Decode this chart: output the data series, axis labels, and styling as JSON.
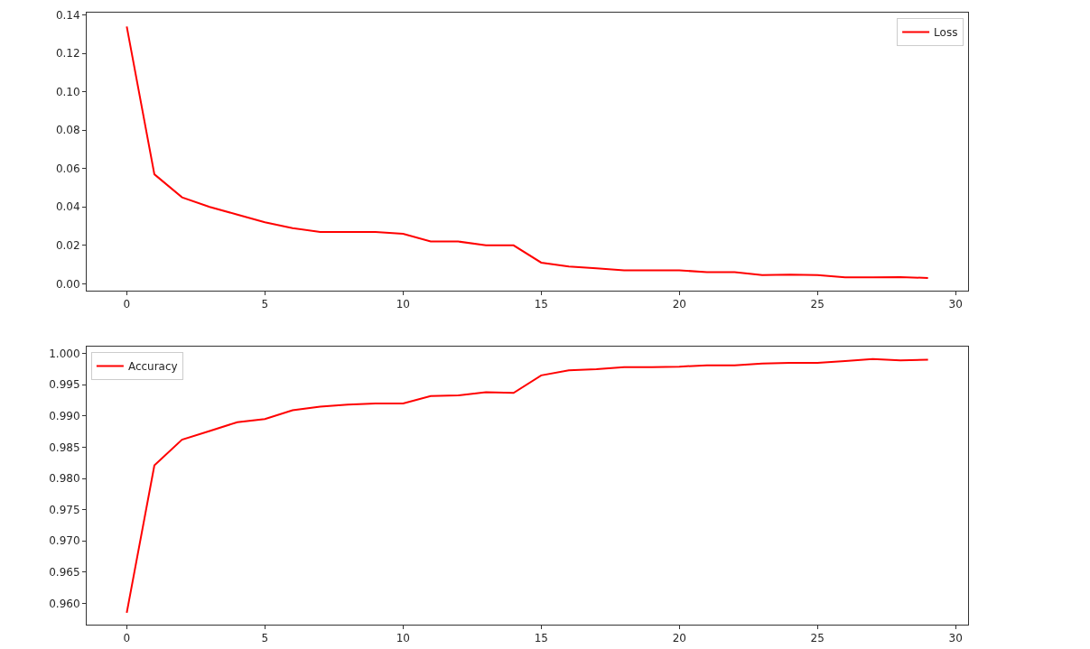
{
  "chart_data": [
    {
      "type": "line",
      "x": [
        0,
        1,
        2,
        3,
        4,
        5,
        6,
        7,
        8,
        9,
        10,
        11,
        12,
        13,
        14,
        15,
        16,
        17,
        18,
        19,
        20,
        21,
        22,
        23,
        24,
        25,
        26,
        27,
        28,
        29
      ],
      "series": [
        {
          "name": "Loss",
          "color": "#ff0000",
          "values": [
            0.134,
            0.057,
            0.045,
            0.04,
            0.036,
            0.032,
            0.029,
            0.027,
            0.027,
            0.027,
            0.026,
            0.022,
            0.022,
            0.02,
            0.02,
            0.011,
            0.009,
            0.008,
            0.007,
            0.007,
            0.007,
            0.006,
            0.006,
            0.0045,
            0.0047,
            0.0045,
            0.0033,
            0.0033,
            0.0035,
            0.003
          ]
        }
      ],
      "xlim": [
        -1.45,
        30.45
      ],
      "xticks": [
        0,
        5,
        10,
        15,
        20,
        25,
        30
      ],
      "ylim": [
        -0.0036,
        0.1412
      ],
      "yticks": [
        {
          "value": 0,
          "label": "0.00"
        },
        {
          "value": 0.02,
          "label": "0.02"
        },
        {
          "value": 0.04,
          "label": "0.04"
        },
        {
          "value": 0.06,
          "label": "0.06"
        },
        {
          "value": 0.08,
          "label": "0.08"
        },
        {
          "value": 0.1,
          "label": "0.10"
        },
        {
          "value": 0.12,
          "label": "0.12"
        },
        {
          "value": 0.14,
          "label": "0.14"
        }
      ],
      "legend": "top right"
    },
    {
      "type": "line",
      "x": [
        0,
        1,
        2,
        3,
        4,
        5,
        6,
        7,
        8,
        9,
        10,
        11,
        12,
        13,
        14,
        15,
        16,
        17,
        18,
        19,
        20,
        21,
        22,
        23,
        24,
        25,
        26,
        27,
        28,
        29
      ],
      "series": [
        {
          "name": "Accuracy",
          "color": "#ff0000",
          "values": [
            0.9585,
            0.9821,
            0.9862,
            0.9876,
            0.989,
            0.9895,
            0.9909,
            0.9915,
            0.9918,
            0.992,
            0.992,
            0.9932,
            0.9933,
            0.9938,
            0.9937,
            0.9965,
            0.9973,
            0.9975,
            0.9978,
            0.9978,
            0.9979,
            0.9981,
            0.9981,
            0.9984,
            0.9985,
            0.9985,
            0.9988,
            0.9991,
            0.9989,
            0.999
          ]
        }
      ],
      "xlim": [
        -1.45,
        30.45
      ],
      "xticks": [
        0,
        5,
        10,
        15,
        20,
        25,
        30
      ],
      "ylim": [
        0.9566,
        1.0011
      ],
      "yticks": [
        {
          "value": 0.96,
          "label": "0.960"
        },
        {
          "value": 0.965,
          "label": "0.965"
        },
        {
          "value": 0.97,
          "label": "0.970"
        },
        {
          "value": 0.975,
          "label": "0.975"
        },
        {
          "value": 0.98,
          "label": "0.980"
        },
        {
          "value": 0.985,
          "label": "0.985"
        },
        {
          "value": 0.99,
          "label": "0.990"
        },
        {
          "value": 0.995,
          "label": "0.995"
        },
        {
          "value": 1.0,
          "label": "1.000"
        }
      ],
      "legend": "top left"
    }
  ]
}
